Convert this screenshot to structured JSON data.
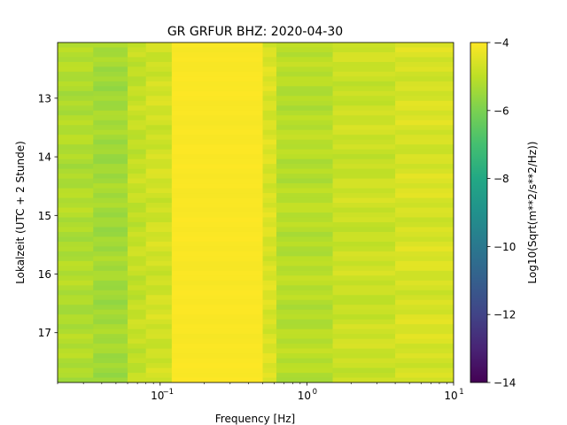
{
  "chart_data": {
    "type": "heatmap",
    "title": "GR GRFUR  BHZ: 2020-04-30",
    "xlabel": "Frequency [Hz]",
    "ylabel": "Lokalzeit (UTC + 2 Stunde)",
    "x_scale": "log",
    "xlim": [
      0.02,
      10
    ],
    "x_ticks": [
      {
        "value": 0.1,
        "label": "10",
        "exp": "−1"
      },
      {
        "value": 1,
        "label": "10",
        "exp": "0"
      },
      {
        "value": 10,
        "label": "10",
        "exp": "1"
      }
    ],
    "ylim": [
      12.05,
      17.85
    ],
    "y_inverted": true,
    "y_ticks": [
      13,
      14,
      15,
      16,
      17
    ],
    "colorbar": {
      "label": "Log10(Sqrt(m**2/s**2/Hz))",
      "colormap": "viridis",
      "range": [
        -14,
        -4
      ],
      "ticks": [
        -4,
        -6,
        -8,
        -10,
        -12,
        -14
      ],
      "tick_labels": [
        "−4",
        "−6",
        "−8",
        "−10",
        "−12",
        "−14"
      ]
    },
    "frequency_bands": [
      {
        "f_min": 0.02,
        "f_max": 0.035,
        "value": -5.2
      },
      {
        "f_min": 0.035,
        "f_max": 0.06,
        "value": -5.4
      },
      {
        "f_min": 0.06,
        "f_max": 0.08,
        "value": -4.9
      },
      {
        "f_min": 0.08,
        "f_max": 0.12,
        "value": -4.7
      },
      {
        "f_min": 0.12,
        "f_max": 0.5,
        "value": -4.05
      },
      {
        "f_min": 0.5,
        "f_max": 0.62,
        "value": -4.55
      },
      {
        "f_min": 0.62,
        "f_max": 1.5,
        "value": -5.1
      },
      {
        "f_min": 1.5,
        "f_max": 4,
        "value": -4.8
      },
      {
        "f_min": 4,
        "f_max": 10,
        "value": -4.6
      }
    ]
  }
}
